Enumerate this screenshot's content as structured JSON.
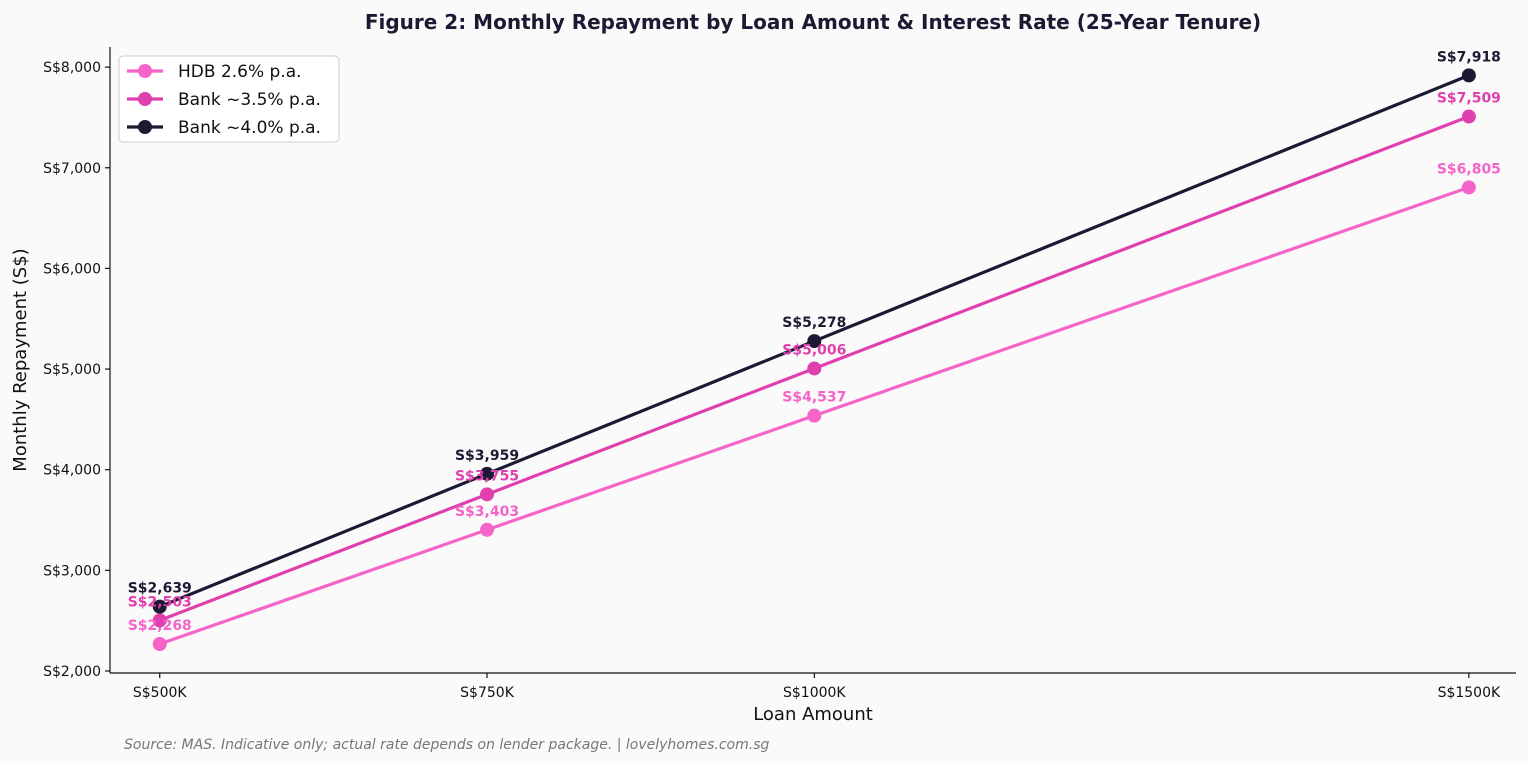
{
  "chart_data": {
    "type": "line",
    "title": "Figure 2: Monthly Repayment by Loan Amount & Interest Rate (25-Year Tenure)",
    "xlabel": "Loan Amount",
    "ylabel": "Monthly Repayment (S$)",
    "categories": [
      "S$500K",
      "S$750K",
      "S$1000K",
      "S$1500K"
    ],
    "x": [
      500,
      750,
      1000,
      1500
    ],
    "xlim": [
      462,
      1536
    ],
    "ylim": [
      1980,
      8200
    ],
    "yticks": [
      2000,
      3000,
      4000,
      5000,
      6000,
      7000,
      8000
    ],
    "ytick_labels": [
      "S$2,000",
      "S$3,000",
      "S$4,000",
      "S$5,000",
      "S$6,000",
      "S$7,000",
      "S$8,000"
    ],
    "grid": false,
    "legend_position": "top-left",
    "series": [
      {
        "name": "HDB 2.6% p.a.",
        "color": "#f564c8",
        "values": [
          2268,
          3403,
          4537,
          6805
        ],
        "labels": [
          "S$2,268",
          "S$3,403",
          "S$4,537",
          "S$6,805"
        ]
      },
      {
        "name": "Bank ~3.5% p.a.",
        "color": "#e03fae",
        "values": [
          2503,
          3755,
          5006,
          7509
        ],
        "labels": [
          "S$2,503",
          "S$3,755",
          "S$5,006",
          "S$7,509"
        ]
      },
      {
        "name": "Bank ~4.0% p.a.",
        "color": "#1c1a33",
        "values": [
          2639,
          3959,
          5278,
          7918
        ],
        "labels": [
          "S$2,639",
          "S$3,959",
          "S$5,278",
          "S$7,918"
        ]
      }
    ],
    "source_note": "Source: MAS. Indicative only; actual rate depends on lender package. | lovelyhomes.com.sg"
  }
}
